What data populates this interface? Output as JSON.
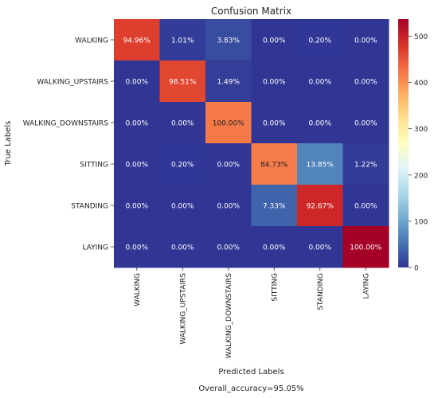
{
  "chart_data": {
    "type": "heatmap",
    "title": "Confusion Matrix",
    "xlabel": "Predicted Labels",
    "ylabel": "True Labels",
    "footer": "Overall_accuracy=95.05%",
    "rows": [
      "WALKING",
      "WALKING_UPSTAIRS",
      "WALKING_DOWNSTAIRS",
      "SITTING",
      "STANDING",
      "LAYING"
    ],
    "columns": [
      "WALKING",
      "WALKING_UPSTAIRS",
      "WALKING_DOWNSTAIRS",
      "SITTING",
      "STANDING",
      "LAYING"
    ],
    "cell_labels": [
      [
        "94.96%",
        "1.01%",
        "3.83%",
        "0.00%",
        "0.20%",
        "0.00%"
      ],
      [
        "0.00%",
        "98.51%",
        "1.49%",
        "0.00%",
        "0.00%",
        "0.00%"
      ],
      [
        "0.00%",
        "0.00%",
        "100.00%",
        "0.00%",
        "0.00%",
        "0.00%"
      ],
      [
        "0.00%",
        "0.20%",
        "0.00%",
        "84.73%",
        "13.85%",
        "1.22%"
      ],
      [
        "0.00%",
        "0.00%",
        "0.00%",
        "7.33%",
        "92.67%",
        "0.00%"
      ],
      [
        "0.00%",
        "0.00%",
        "0.00%",
        "0.00%",
        "0.00%",
        "100.00%"
      ]
    ],
    "counts": [
      [
        471,
        5,
        19,
        0,
        1,
        0
      ],
      [
        0,
        464,
        7,
        0,
        0,
        0
      ],
      [
        0,
        0,
        420,
        0,
        0,
        0
      ],
      [
        0,
        1,
        0,
        416,
        68,
        6
      ],
      [
        0,
        0,
        0,
        39,
        493,
        0
      ],
      [
        0,
        0,
        0,
        0,
        0,
        537
      ]
    ],
    "colorbar": {
      "colormap": "RdYlBu_r",
      "range": [
        0,
        537
      ],
      "ticks": [
        0,
        100,
        200,
        300,
        400,
        500
      ]
    }
  }
}
